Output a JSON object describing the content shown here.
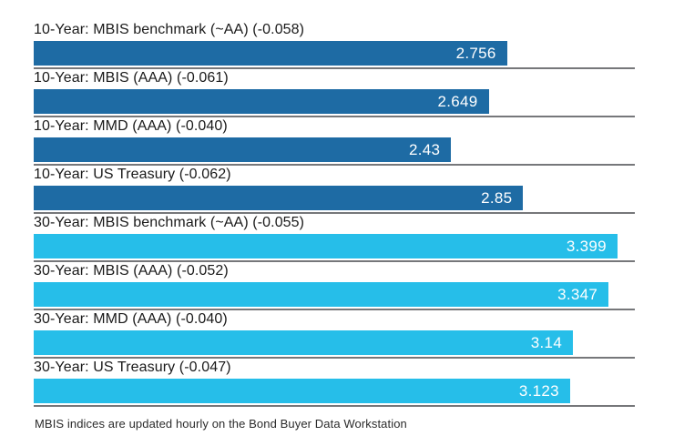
{
  "chart_data": {
    "type": "bar",
    "orientation": "horizontal",
    "title": "",
    "xlabel": "",
    "ylabel": "",
    "xlim": [
      0,
      3.5
    ],
    "grid": false,
    "legend": false,
    "categories": [
      "10-Year: MBIS benchmark (~AA) (-0.058)",
      "10-Year: MBIS (AAA) (-0.061)",
      "10-Year: MMD (AAA) (-0.040)",
      "10-Year: US Treasury (-0.062)",
      "30-Year: MBIS benchmark (~AA) (-0.055)",
      "30-Year: MBIS (AAA) (-0.052)",
      "30-Year: MMD (AAA) (-0.040)",
      "30-Year: US Treasury (-0.047)"
    ],
    "values": [
      2.756,
      2.649,
      2.43,
      2.85,
      3.399,
      3.347,
      3.14,
      3.123
    ],
    "bars": [
      {
        "label": "10-Year: MBIS benchmark (~AA) (-0.058)",
        "value": 2.756,
        "display": "2.756",
        "group": "10-year"
      },
      {
        "label": "10-Year: MBIS (AAA) (-0.061)",
        "value": 2.649,
        "display": "2.649",
        "group": "10-year"
      },
      {
        "label": "10-Year: MMD (AAA) (-0.040)",
        "value": 2.43,
        "display": "2.43",
        "group": "10-year"
      },
      {
        "label": "10-Year: US Treasury (-0.062)",
        "value": 2.85,
        "display": "2.85",
        "group": "10-year"
      },
      {
        "label": "30-Year: MBIS benchmark (~AA) (-0.055)",
        "value": 3.399,
        "display": "3.399",
        "group": "30-year"
      },
      {
        "label": "30-Year: MBIS (AAA) (-0.052)",
        "value": 3.347,
        "display": "3.347",
        "group": "30-year"
      },
      {
        "label": "30-Year: MMD (AAA) (-0.040)",
        "value": 3.14,
        "display": "3.14",
        "group": "30-year"
      },
      {
        "label": "30-Year: US Treasury (-0.047)",
        "value": 3.123,
        "display": "3.123",
        "group": "30-year"
      }
    ],
    "colors": {
      "10-year": "#1e6ba4",
      "30-year": "#26bee9",
      "baseline_rule": "#76777a",
      "value_text": "#ffffff",
      "label_text": "#1a1a1a"
    }
  },
  "footer": {
    "note": "MBIS indices are updated hourly on the Bond Buyer Data Workstation"
  }
}
